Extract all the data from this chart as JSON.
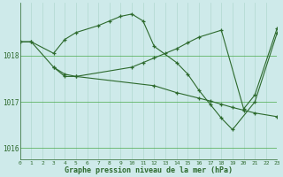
{
  "line1_x": [
    0,
    1,
    3,
    4,
    5,
    7,
    8,
    9,
    10,
    11,
    12,
    14,
    15,
    16,
    17,
    18,
    19,
    21,
    23
  ],
  "line1_y": [
    1018.3,
    1018.3,
    1018.05,
    1018.35,
    1018.5,
    1018.65,
    1018.75,
    1018.85,
    1018.9,
    1018.75,
    1018.2,
    1017.85,
    1017.6,
    1017.25,
    1016.95,
    1016.65,
    1016.4,
    1017.0,
    1018.5
  ],
  "line2_x": [
    0,
    1,
    3,
    4,
    5,
    12,
    14,
    16,
    17,
    18,
    19,
    20,
    21,
    23
  ],
  "line2_y": [
    1018.3,
    1018.3,
    1017.75,
    1017.55,
    1017.55,
    1017.35,
    1017.2,
    1017.08,
    1017.02,
    1016.95,
    1016.88,
    1016.82,
    1016.76,
    1016.68
  ],
  "line3_x": [
    3,
    4,
    5,
    10,
    11,
    12,
    13,
    14,
    15,
    16,
    18,
    20,
    21,
    23
  ],
  "line3_y": [
    1017.75,
    1017.6,
    1017.55,
    1017.75,
    1017.85,
    1017.95,
    1018.05,
    1018.15,
    1018.28,
    1018.4,
    1018.55,
    1016.85,
    1017.15,
    1018.6
  ],
  "line_color": "#2d6a2d",
  "bg_color": "#ceeaea",
  "grid_color_v": "#b0d8d0",
  "grid_color_h": "#4aaa4a",
  "ylabel_ticks": [
    1016,
    1017,
    1018
  ],
  "xlabel_ticks": [
    0,
    1,
    2,
    3,
    4,
    5,
    6,
    7,
    8,
    9,
    10,
    11,
    12,
    13,
    14,
    15,
    16,
    17,
    18,
    19,
    20,
    21,
    22,
    23
  ],
  "xlabel_label": "Graphe pression niveau de la mer (hPa)",
  "xlim": [
    0,
    23
  ],
  "ylim": [
    1015.75,
    1019.15
  ]
}
